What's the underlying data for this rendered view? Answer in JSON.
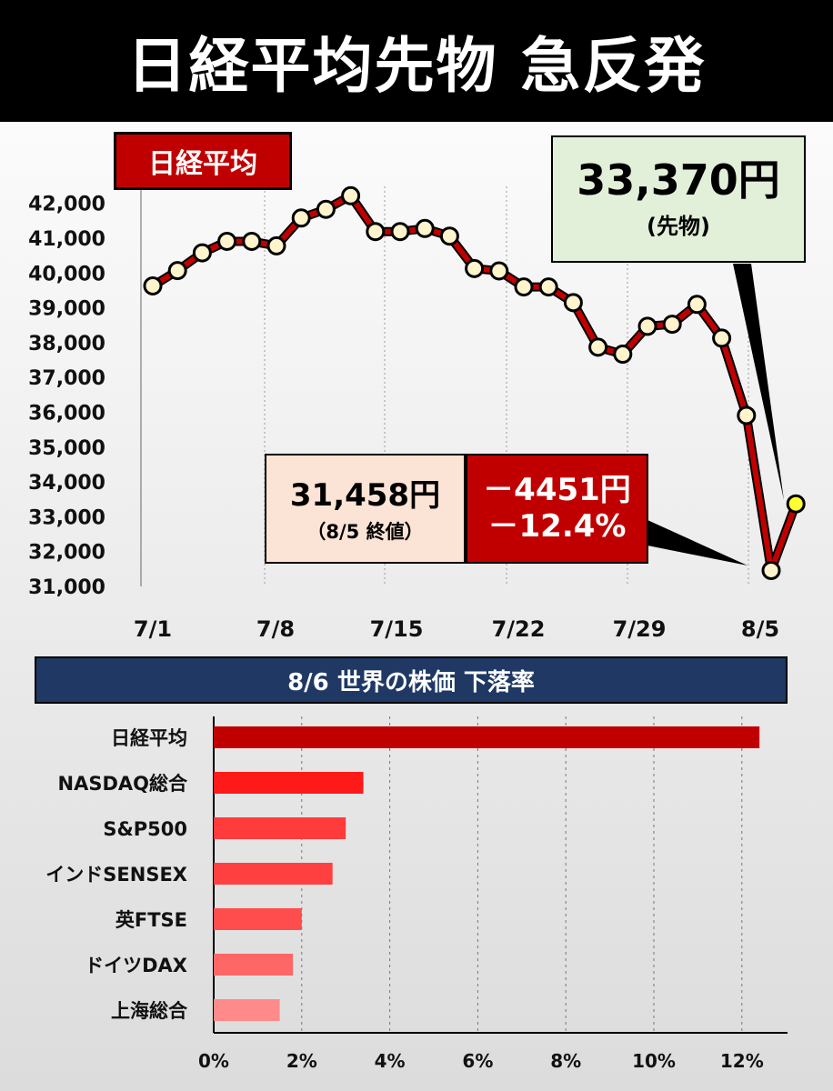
{
  "header": {
    "title": "日経平均先物 急反発"
  },
  "chart1_tag": "日経平均",
  "futures_callout": {
    "value": "33,370円",
    "sub": "(先物)"
  },
  "close_callout": {
    "value": "31,458円",
    "sub": "（8/5 終値）"
  },
  "change_callout": {
    "points": "－4451円",
    "percent": "－12.4%"
  },
  "colors": {
    "line": "#c00000",
    "marker_fill": "#fff4cc",
    "futures_marker": "#ffff33",
    "title_bar": "#1f3864"
  },
  "chart_data": [
    {
      "type": "line",
      "ylim": [
        31000,
        42200
      ],
      "yticks": [
        "42,000",
        "41,000",
        "40,000",
        "39,000",
        "38,000",
        "37,000",
        "36,000",
        "35,000",
        "34,000",
        "33,000",
        "32,000",
        "31,000"
      ],
      "ytick_values": [
        42000,
        41000,
        40000,
        39000,
        38000,
        37000,
        36000,
        35000,
        34000,
        33000,
        32000,
        31000
      ],
      "xticks": [
        "7/1",
        "7/8",
        "7/15",
        "7/22",
        "7/29",
        "8/5"
      ],
      "grid": "vertical dotted",
      "series": [
        {
          "values": [
            39630,
            40070,
            40580,
            40910,
            40910,
            40780,
            41580,
            41830,
            42220,
            41190,
            41190,
            41280,
            41060,
            40130,
            40060,
            39600,
            39600,
            39150,
            37870,
            37670,
            38470,
            38530,
            39100,
            38130,
            35910,
            31458,
            33370
          ]
        }
      ]
    },
    {
      "type": "bar",
      "title": "8/6  世界の株価 下落率",
      "categories": [
        "日経平均",
        "NASDAQ総合",
        "S&P500",
        "インドSENSEX",
        "英FTSE",
        "ドイツDAX",
        "上海総合"
      ],
      "values": [
        12.4,
        3.4,
        3.0,
        2.7,
        2.0,
        1.8,
        1.5
      ],
      "colors": [
        "#c00000",
        "#ff1a1a",
        "#ff3b3b",
        "#ff4040",
        "#ff4d4d",
        "#ff6666",
        "#ff8a8a"
      ],
      "xticks": [
        "0%",
        "2%",
        "4%",
        "6%",
        "8%",
        "10%",
        "12%"
      ],
      "xlim": [
        0,
        13
      ],
      "grid": "vertical dotted"
    }
  ]
}
